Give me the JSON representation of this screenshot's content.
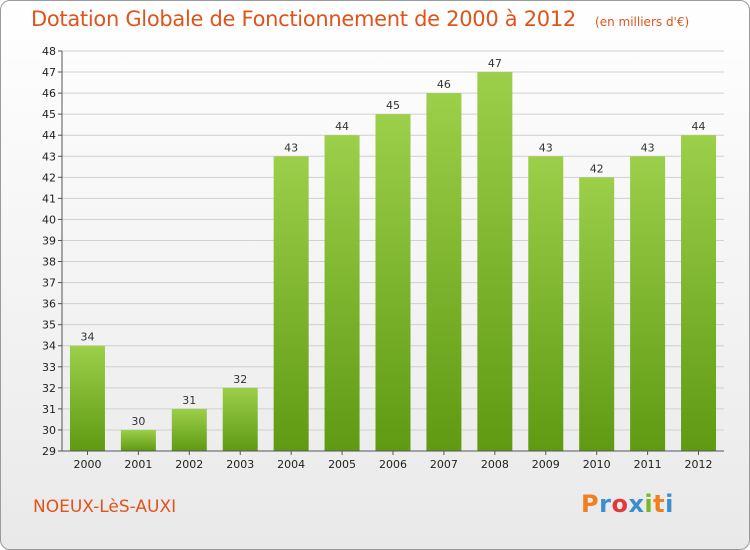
{
  "title": "Dotation Globale de Fonctionnement de 2000 à 2012",
  "subtitle": "(en milliers d'€)",
  "commune": "NOEUX-LèS-AUXI",
  "brand": {
    "text": "Proxiti",
    "colors": [
      "#f07f1e",
      "#3a8fd0",
      "#e23a3a",
      "#3a8fd0",
      "#7ab825",
      "#f07f1e",
      "#3a8fd0"
    ]
  },
  "colors": {
    "title": "#e0531b",
    "bar_light": "#9ccf4a",
    "bar_dark": "#5f9a12",
    "axis": "#555555",
    "grid": "#d0d0d0"
  },
  "chart_data": {
    "type": "bar",
    "categories": [
      "2000",
      "2001",
      "2002",
      "2003",
      "2004",
      "2005",
      "2006",
      "2007",
      "2008",
      "2009",
      "2010",
      "2011",
      "2012"
    ],
    "values": [
      34,
      30,
      31,
      32,
      43,
      44,
      45,
      46,
      47,
      43,
      42,
      43,
      44
    ],
    "ylim": [
      29,
      48
    ],
    "yticks": [
      29,
      30,
      31,
      32,
      33,
      34,
      35,
      36,
      37,
      38,
      39,
      40,
      41,
      42,
      43,
      44,
      45,
      46,
      47,
      48
    ],
    "grid": true,
    "data_labels": true
  }
}
